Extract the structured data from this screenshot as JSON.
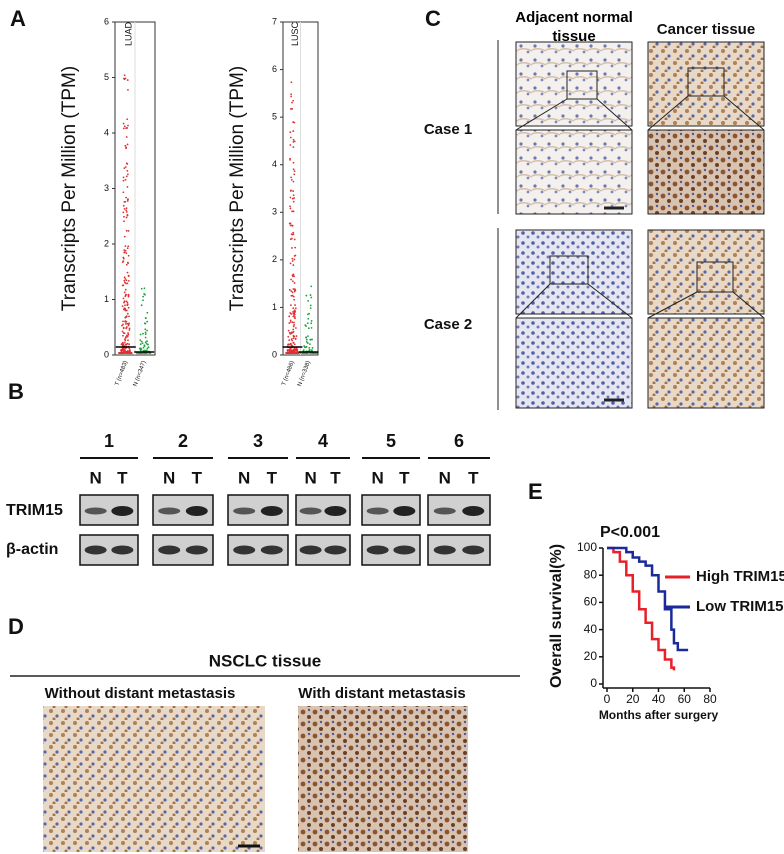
{
  "panel_a": {
    "label": "A"
  },
  "panel_b": {
    "label": "B",
    "lanes": [
      "1",
      "2",
      "3",
      "4",
      "5",
      "6"
    ],
    "lane_labels": [
      "N",
      "T"
    ],
    "rows": [
      "TRIM15",
      "β-actin"
    ]
  },
  "panel_c": {
    "label": "C",
    "columns": [
      "Adjacent normal tissue",
      "Cancer tissue"
    ],
    "rows": [
      "Case 1",
      "Case 2"
    ]
  },
  "panel_d": {
    "label": "D",
    "title": "NSCLC tissue",
    "columns": [
      "Without distant metastasis",
      "With distant metastasis"
    ]
  },
  "panel_e": {
    "label": "E"
  },
  "chart_data": [
    {
      "type": "strip",
      "title": "LUAD",
      "ylabel": "Transcripts Per Million (TPM)",
      "categories": [
        "T (n=483)",
        "N (n=347)"
      ],
      "colors": [
        "#e03030",
        "#20a040"
      ],
      "ylim": [
        0,
        6
      ],
      "yticks": [
        0,
        1,
        2,
        3,
        4,
        5,
        6
      ]
    },
    {
      "type": "strip",
      "title": "LUSC",
      "ylabel": "Transcripts Per Million (TPM)",
      "categories": [
        "T (n=486)",
        "N (n=338)"
      ],
      "colors": [
        "#e03030",
        "#20a040"
      ],
      "ylim": [
        0,
        7
      ],
      "yticks": [
        0,
        1,
        2,
        3,
        4,
        5,
        6,
        7
      ]
    },
    {
      "type": "step",
      "title": "P<0.001",
      "xlabel": "Months after surgery",
      "ylabel": "Overall survival(%)",
      "xlim": [
        0,
        80
      ],
      "xticks": [
        0,
        20,
        40,
        60,
        80
      ],
      "ylim": [
        0,
        100
      ],
      "yticks": [
        0,
        20,
        40,
        60,
        80,
        100
      ],
      "series": [
        {
          "name": "High TRIM15",
          "color": "#e8202a",
          "x": [
            0,
            5,
            10,
            15,
            20,
            25,
            30,
            35,
            40,
            45,
            50,
            52
          ],
          "values": [
            100,
            97,
            90,
            80,
            68,
            55,
            45,
            33,
            25,
            18,
            12,
            10
          ]
        },
        {
          "name": "Low TRIM15",
          "color": "#1a2a9a",
          "x": [
            0,
            10,
            15,
            20,
            25,
            30,
            35,
            40,
            45,
            50,
            52,
            55,
            63
          ],
          "values": [
            100,
            100,
            97,
            93,
            90,
            87,
            80,
            68,
            55,
            40,
            30,
            25,
            25
          ]
        }
      ]
    }
  ]
}
